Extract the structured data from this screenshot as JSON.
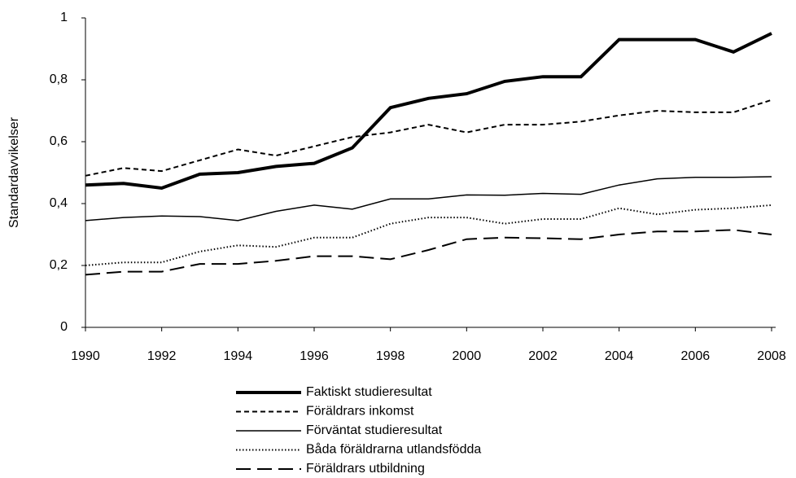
{
  "chart_data": {
    "type": "line",
    "ylabel": "Standardavvikelser",
    "x": [
      1990,
      1991,
      1992,
      1993,
      1994,
      1995,
      1996,
      1997,
      1998,
      1999,
      2000,
      2001,
      2002,
      2003,
      2004,
      2005,
      2006,
      2007,
      2008
    ],
    "xlim": [
      1990,
      2008
    ],
    "xticks": [
      1990,
      1992,
      1994,
      1996,
      1998,
      2000,
      2002,
      2004,
      2006,
      2008
    ],
    "ylim": [
      0,
      1
    ],
    "yticks": [
      0,
      {
        "value": 0.2,
        "label": "0,2"
      },
      {
        "value": 0.4,
        "label": "0,4"
      },
      {
        "value": 0.6,
        "label": "0,6"
      },
      {
        "value": 0.8,
        "label": "0,8"
      },
      1
    ],
    "grid": false,
    "legend": "bottom",
    "series": [
      {
        "name": "Faktiskt studieresultat",
        "color": "#000000",
        "width": 4,
        "dash": "none",
        "values": [
          0.46,
          0.465,
          0.45,
          0.495,
          0.5,
          0.52,
          0.53,
          0.58,
          0.71,
          0.74,
          0.755,
          0.795,
          0.81,
          0.81,
          0.93,
          0.93,
          0.93,
          0.89,
          0.95
        ]
      },
      {
        "name": "Föräldrars inkomst",
        "color": "#000000",
        "width": 2,
        "dash": "6 4",
        "values": [
          0.49,
          0.515,
          0.505,
          0.54,
          0.575,
          0.555,
          0.585,
          0.615,
          0.63,
          0.655,
          0.63,
          0.655,
          0.655,
          0.665,
          0.685,
          0.7,
          0.695,
          0.695,
          0.735
        ]
      },
      {
        "name": "Förväntat studieresultat",
        "color": "#000000",
        "width": 1.5,
        "dash": "none",
        "values": [
          0.345,
          0.355,
          0.36,
          0.358,
          0.345,
          0.375,
          0.395,
          0.382,
          0.415,
          0.415,
          0.428,
          0.427,
          0.433,
          0.43,
          0.46,
          0.48,
          0.485,
          0.485,
          0.487
        ]
      },
      {
        "name": "Båda föräldrarna utlandsfödda",
        "color": "#000000",
        "width": 2,
        "dash": "1.5 2.5",
        "values": [
          0.2,
          0.21,
          0.21,
          0.245,
          0.265,
          0.26,
          0.29,
          0.29,
          0.335,
          0.355,
          0.355,
          0.335,
          0.35,
          0.35,
          0.385,
          0.365,
          0.38,
          0.385,
          0.395
        ]
      },
      {
        "name": "Föräldrars utbildning",
        "color": "#000000",
        "width": 2,
        "dash": "18 8",
        "values": [
          0.17,
          0.18,
          0.18,
          0.205,
          0.205,
          0.215,
          0.23,
          0.23,
          0.22,
          0.25,
          0.285,
          0.29,
          0.288,
          0.285,
          0.3,
          0.31,
          0.31,
          0.315,
          0.3
        ]
      }
    ]
  }
}
